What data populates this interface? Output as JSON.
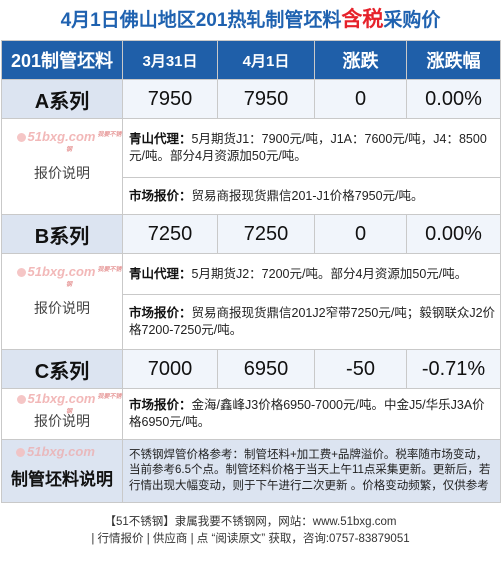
{
  "title": {
    "part1": "4月1日佛山地区201热轧制管坯料",
    "highlight": "含税",
    "part2": "采购价"
  },
  "header": {
    "product": "201制管坯料",
    "date1": "3月31日",
    "date2": "4月1日",
    "change": "涨跌",
    "change_pct": "涨跌幅"
  },
  "rows": [
    {
      "name": "A系列",
      "prev": "7950",
      "curr": "7950",
      "change": "0",
      "pct": "0.00%",
      "label": "报价说明",
      "notes": [
        {
          "title": "青山代理：",
          "text": "5月期货J1：7900元/吨，J1A：7600元/吨，J4：8500元/吨。部分4月资源加50元/吨。"
        },
        {
          "title": "市场报价：",
          "text": "贸易商报现货鼎信201-J1价格7950元/吨。"
        }
      ]
    },
    {
      "name": "B系列",
      "prev": "7250",
      "curr": "7250",
      "change": "0",
      "pct": "0.00%",
      "label": "报价说明",
      "notes": [
        {
          "title": "青山代理：",
          "text": "5月期货J2：7200元/吨。部分4月资源加50元/吨。"
        },
        {
          "title": "市场报价：",
          "text": "贸易商报现货鼎信201J2窄带7250元/吨；毅钢联众J2价格7200-7250元/吨。"
        }
      ]
    },
    {
      "name": "C系列",
      "prev": "7000",
      "curr": "6950",
      "change": "-50",
      "pct": "-0.71%",
      "label": "报价说明",
      "notes": [
        {
          "title": "市场报价：",
          "text": "金海/鑫峰J3价格6950-7000元/吨。中金J5/华乐J3A价格6950元/吨。"
        }
      ]
    }
  ],
  "watermark": {
    "text": "51bxg.com",
    "small": "我要不锈钢"
  },
  "footer_row": {
    "name": "制管坯料说明",
    "note": "不锈钢焊管价格参考：制管坯料+加工费+品牌溢价。税率随市场变动，当前参考6.5个点。制管坯料价格于当天上午11点采集更新。更新后，若行情出现大幅变动，则于下午进行二次更新 。价格变动频繁，仅供参考"
  },
  "bottom": {
    "line1": "【51不锈钢】隶属我要不锈钢网，网站：www.51bxg.com",
    "line2": "| 行情报价 | 供应商 | 点 “阅读原文” 获取，咨询:0757-83879051"
  }
}
